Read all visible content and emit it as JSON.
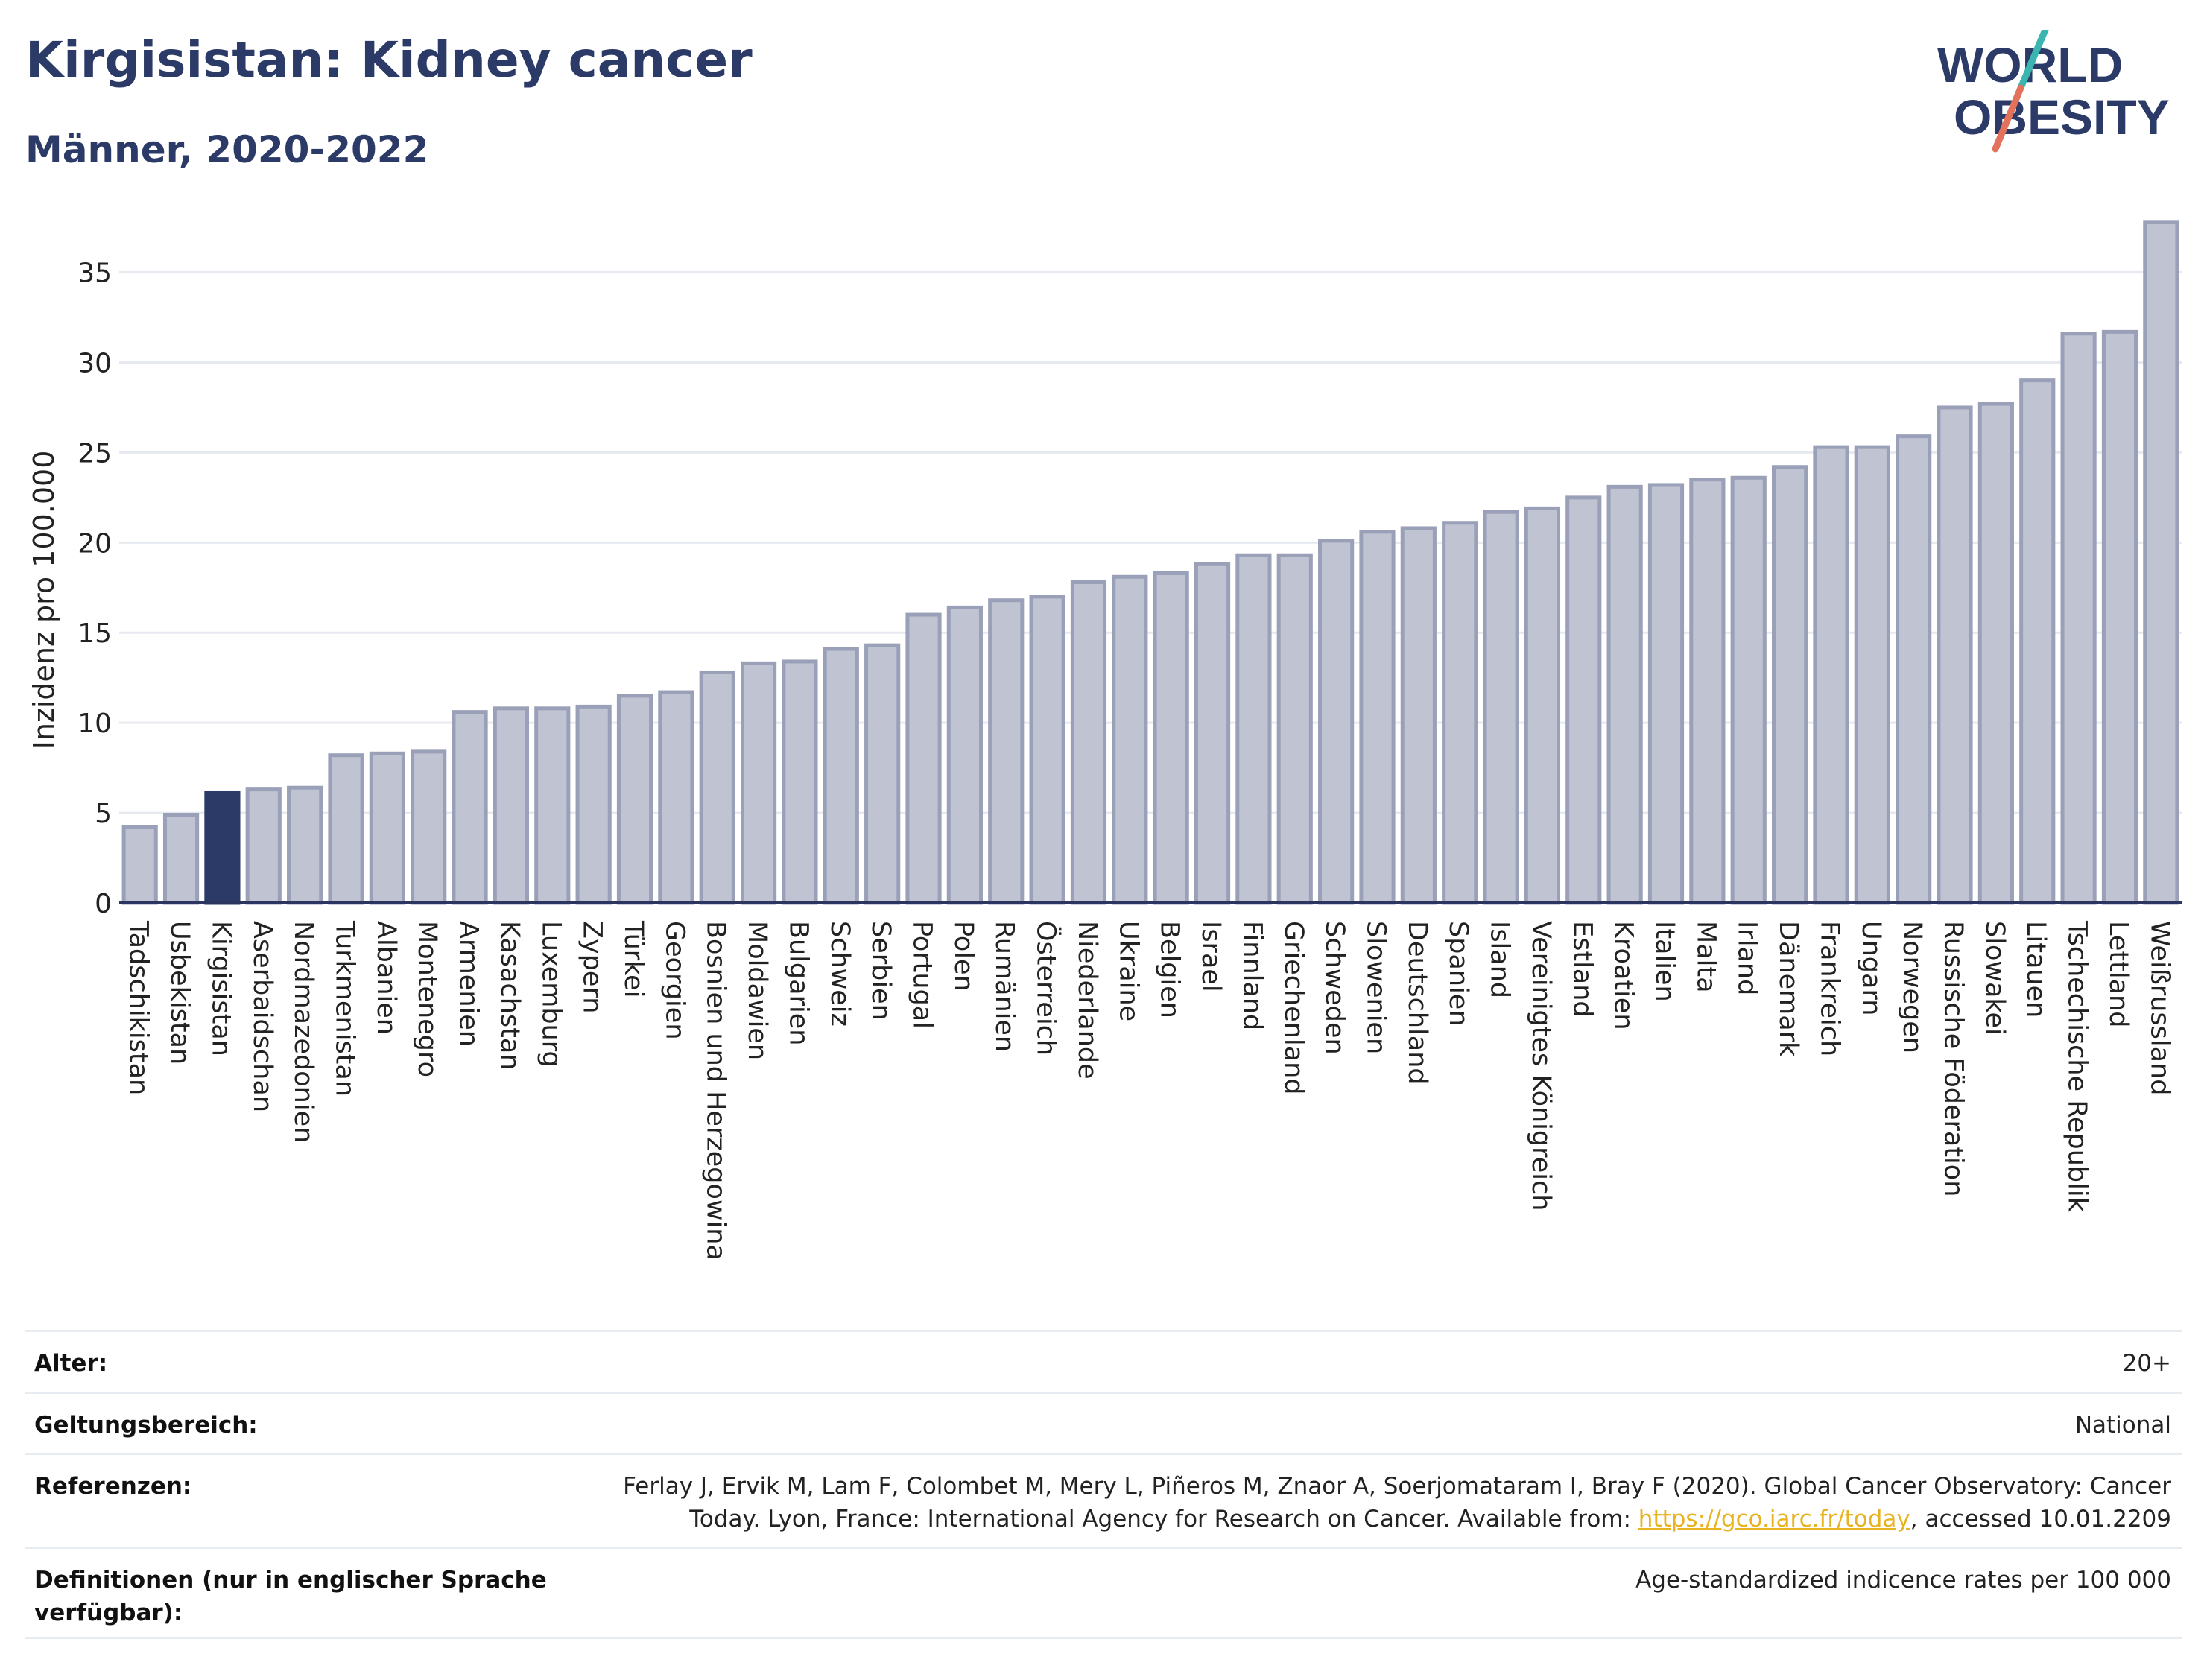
{
  "header": {
    "title": "Kirgisistan: Kidney cancer",
    "subtitle": "Männer, 2020-2022"
  },
  "logo": {
    "line1": "WORLD",
    "line2": "OBESITY",
    "colors": {
      "text": "#2b3a67",
      "slash_top": "#3ab5b0",
      "slash_bottom": "#e2725b"
    }
  },
  "colors": {
    "bar_fill": "#bfc3d2",
    "bar_stroke": "#9aa0b8",
    "highlight_fill": "#2b3a67",
    "axis_line": "#2b3560",
    "grid": "#e6e9ef"
  },
  "chart_data": {
    "type": "bar",
    "ylabel": "Inzidenz pro 100.000",
    "xlabel": "",
    "ylim": [
      0,
      38
    ],
    "yticks": [
      0,
      5,
      10,
      15,
      20,
      25,
      30,
      35
    ],
    "grid": true,
    "highlight": "Kirgisistan",
    "categories": [
      "Tadschikistan",
      "Usbekistan",
      "Kirgisistan",
      "Aserbaidschan",
      "Nordmazedonien",
      "Turkmenistan",
      "Albanien",
      "Montenegro",
      "Armenien",
      "Kasachstan",
      "Luxemburg",
      "Zypern",
      "Türkei",
      "Georgien",
      "Bosnien und Herzegowina",
      "Moldawien",
      "Bulgarien",
      "Schweiz",
      "Serbien",
      "Portugal",
      "Polen",
      "Rumänien",
      "Österreich",
      "Niederlande",
      "Ukraine",
      "Belgien",
      "Israel",
      "Finnland",
      "Griechenland",
      "Schweden",
      "Slowenien",
      "Deutschland",
      "Spanien",
      "Island",
      "Vereinigtes Königreich",
      "Estland",
      "Kroatien",
      "Italien",
      "Malta",
      "Irland",
      "Dänemark",
      "Frankreich",
      "Ungarn",
      "Norwegen",
      "Russische Föderation",
      "Slowakei",
      "Litauen",
      "Tschechische Republik",
      "Lettland",
      "Weißrussland"
    ],
    "values": [
      4.2,
      4.9,
      6.1,
      6.3,
      6.4,
      8.2,
      8.3,
      8.4,
      10.6,
      10.8,
      10.8,
      10.9,
      11.5,
      11.7,
      12.8,
      13.3,
      13.4,
      14.1,
      14.3,
      16.0,
      16.4,
      16.8,
      17.0,
      17.8,
      18.1,
      18.3,
      18.8,
      19.3,
      19.3,
      20.1,
      20.6,
      20.8,
      21.1,
      21.7,
      21.9,
      22.5,
      23.1,
      23.2,
      23.5,
      23.6,
      24.2,
      25.3,
      25.3,
      25.9,
      27.5,
      27.7,
      29.0,
      31.6,
      31.7,
      37.8
    ]
  },
  "meta": {
    "age": {
      "label": "Alter:",
      "value": "20+"
    },
    "scope": {
      "label": "Geltungsbereich:",
      "value": "National"
    },
    "references": {
      "label": "Referenzen:",
      "line1": "Ferlay J, Ervik M, Lam F, Colombet M, Mery L, Piñeros M, Znaor A, Soerjomataram I, Bray F (2020). Global Cancer Observatory: Cancer",
      "line2_prefix": "Today. Lyon, France: International Agency for Research on Cancer. Available from: ",
      "link": "https://gco.iarc.fr/today",
      "line2_suffix": ", accessed 10.01.2209"
    },
    "definitions": {
      "label_line1": "Definitionen (nur in englischer Sprache",
      "label_line2": "verfügbar):",
      "value": "Age-standardized indicence rates per 100 000"
    }
  }
}
